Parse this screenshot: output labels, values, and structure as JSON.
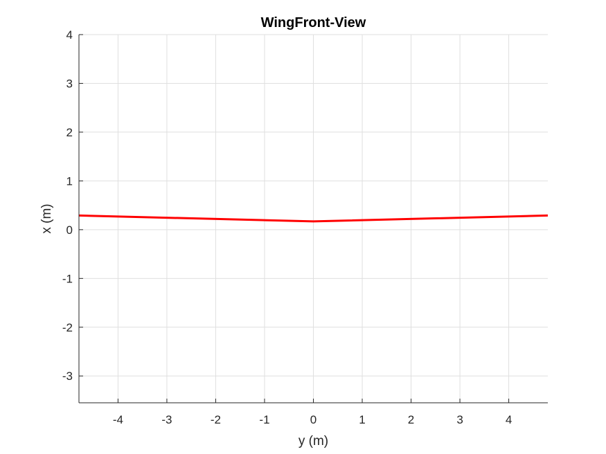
{
  "chart_data": {
    "type": "line",
    "title": "WingFront-View",
    "xlabel": "y (m)",
    "ylabel": "x (m)",
    "xlim": [
      -4.8,
      4.8
    ],
    "ylim": [
      -3.55,
      4
    ],
    "xticks": [
      -4,
      -3,
      -2,
      -1,
      0,
      1,
      2,
      3,
      4
    ],
    "xtick_labels": [
      "-4",
      "-3",
      "-2",
      "-1",
      "0",
      "1",
      "2",
      "3",
      "4"
    ],
    "yticks": [
      -3,
      -2,
      -1,
      0,
      1,
      2,
      3,
      4
    ],
    "ytick_labels": [
      "-3",
      "-2",
      "-1",
      "0",
      "1",
      "2",
      "3",
      "4"
    ],
    "grid": true,
    "series": [
      {
        "x": [
          -4.8,
          0,
          4.8
        ],
        "y": [
          0.29,
          0.17,
          0.29
        ],
        "color": "#ff0000"
      }
    ]
  }
}
